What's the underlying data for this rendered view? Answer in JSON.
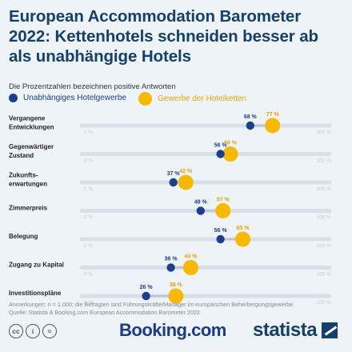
{
  "title": "European Accommodation Barometer 2022: Kettenhotels schneiden besser ab als unabhängige Hotels",
  "subtitle": "Die Prozentzahlen bezeichnen positive Antworten",
  "legend": {
    "series_a": "Unabhängiges Hotelgewerbe",
    "series_b": "Gewerbe der Hotelketten"
  },
  "colors": {
    "series_a": "#1b3f8f",
    "series_b": "#f7b800",
    "title": "#14406b",
    "track": "#d9dfe6"
  },
  "chart_data": {
    "type": "scatter",
    "categories": [
      "Vergangene\nEntwicklungen",
      "Gegenwärtiger\nZustand",
      "Zukunfts-\nerwartungen",
      "Zimmerpreis",
      "Belegung",
      "Zugang zu Kapital",
      "Investitionspläne"
    ],
    "series": [
      {
        "name": "Unabhängiges Hotelgewerbe",
        "values": [
          68,
          56,
          37,
          48,
          56,
          36,
          26
        ]
      },
      {
        "name": "Gewerbe der Hotelketten",
        "values": [
          77,
          60,
          42,
          57,
          65,
          44,
          38
        ]
      }
    ],
    "xlim": [
      0,
      100
    ],
    "tick_labels": [
      "0 %",
      "100 %"
    ],
    "value_suffix": " %"
  },
  "footnote": "Anmerkungen: n = 1.000; die Befragten sind Führungskräfte/Manager im europäischen Beherbergungsgewerbe.\nQuelle: Statista & Booking.com European Accommodation Barometer 2022",
  "logos": {
    "booking": "Booking.com",
    "statista": "statista",
    "cc_icons": [
      "cc",
      "i",
      "="
    ]
  }
}
